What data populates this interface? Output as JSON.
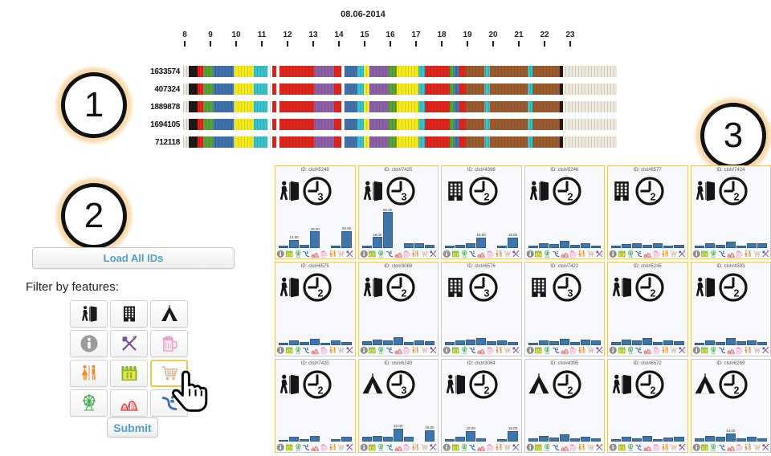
{
  "annotations": {
    "step1": "1",
    "step2": "2",
    "step3": "3"
  },
  "timeline": {
    "title": "08.06-2014",
    "hours": [
      "8",
      "9",
      "10",
      "11",
      "12",
      "13",
      "14",
      "15",
      "16",
      "17",
      "18",
      "19",
      "20",
      "21",
      "22",
      "23"
    ],
    "rows": [
      "1633574",
      "407324",
      "1889878",
      "1694105",
      "712118"
    ],
    "palette": {
      "off": "#edeadf",
      "blk": "#191919",
      "red": "#e3221b",
      "grn": "#54a437",
      "blu": "#3c72b2",
      "yel": "#f6ec16",
      "cyn": "#32c5cd",
      "wht": "#ffffff",
      "pur": "#8b5fa9",
      "brn": "#9c5b2d"
    },
    "segments": [
      [
        "off",
        8
      ],
      [
        "blk",
        12
      ],
      [
        "red",
        8
      ],
      [
        "grn",
        14
      ],
      [
        "blu",
        27
      ],
      [
        "yel",
        28
      ],
      [
        "cyn",
        19
      ],
      [
        "wht",
        6
      ],
      [
        "red",
        6
      ],
      [
        "wht",
        4
      ],
      [
        "red",
        48
      ],
      [
        "pur",
        28
      ],
      [
        "red",
        9
      ],
      [
        "wht",
        5
      ],
      [
        "blu",
        17
      ],
      [
        "cyn",
        9
      ],
      [
        "yel",
        8
      ],
      [
        "pur",
        26
      ],
      [
        "grn",
        11
      ],
      [
        "yel",
        30
      ],
      [
        "cyn",
        9
      ],
      [
        "red",
        34
      ],
      [
        "grn",
        7
      ],
      [
        "blu",
        7
      ],
      [
        "red",
        8
      ],
      [
        "brn",
        26
      ],
      [
        "cyn",
        7
      ],
      [
        "brn",
        52
      ],
      [
        "cyn",
        7
      ],
      [
        "brn",
        38
      ],
      [
        "blk",
        4
      ],
      [
        "off",
        74
      ]
    ]
  },
  "controls": {
    "load_button": "Load All IDs",
    "filter_label": "Filter by features:",
    "submit_button": "Submit",
    "features": [
      {
        "name": "entrance",
        "icon": "door",
        "color": "#1a1a1a",
        "selected": false
      },
      {
        "name": "building",
        "icon": "building",
        "color": "#1a1a1a",
        "selected": false
      },
      {
        "name": "tent",
        "icon": "tent",
        "color": "#1a1a1a",
        "selected": false
      },
      {
        "name": "info",
        "icon": "info",
        "color": "#9b9b9b",
        "selected": false
      },
      {
        "name": "food",
        "icon": "cutlery",
        "color": "#7d4fa0",
        "selected": false
      },
      {
        "name": "beer",
        "icon": "beer",
        "color": "#f2a0c8",
        "selected": false
      },
      {
        "name": "restroom",
        "icon": "restroom",
        "color": "#f08a24",
        "selected": false
      },
      {
        "name": "castle",
        "icon": "castle",
        "color": "#7ab648",
        "selected": false
      },
      {
        "name": "shopping-cart",
        "icon": "cart",
        "color": "#d8b292",
        "selected": true
      },
      {
        "name": "ferris-wheel",
        "icon": "ferris",
        "color": "#3fae49",
        "selected": false
      },
      {
        "name": "roller-coaster",
        "icon": "coaster",
        "color": "#e0524d",
        "selected": false
      },
      {
        "name": "water-slide",
        "icon": "slide",
        "color": "#3e6eb5",
        "selected": false
      }
    ]
  },
  "cards_meta": {
    "bar_color": "#3e76ab",
    "footer_icons": [
      "info",
      "castle",
      "ferris",
      "slide",
      "coaster",
      "beer",
      "restroom",
      "cart",
      "cutlery"
    ],
    "footer_colors": {
      "info": "#8f8f8f",
      "castle": "#7ab648",
      "ferris": "#3fae49",
      "slide": "#3e6eb5",
      "coaster": "#e0524d",
      "beer": "#f2a0c8",
      "restroom": "#f08a24",
      "cart": "#cdb79a",
      "cutlery": "#7d4fa0"
    }
  },
  "cards": [
    {
      "id": "ID: clst#5249",
      "feature": "door",
      "clock": "3",
      "bars": [
        4,
        14,
        6,
        28,
        0,
        4,
        29
      ]
    },
    {
      "id": "ID: clst#7425",
      "feature": "door",
      "clock": "3",
      "bars": [
        5,
        19,
        60,
        0,
        8,
        8,
        6
      ]
    },
    {
      "id": "ID: clst#4398",
      "feature": "building",
      "clock": "2",
      "bars": [
        4,
        6,
        8,
        18,
        0,
        4,
        18
      ]
    },
    {
      "id": "ID: clst#5246",
      "feature": "door",
      "clock": "2",
      "bars": [
        5,
        8,
        7,
        12,
        6,
        9,
        5
      ]
    },
    {
      "id": "ID: clst#6577",
      "feature": "building",
      "clock": "2",
      "bars": [
        4,
        7,
        9,
        6,
        8,
        5,
        6
      ]
    },
    {
      "id": "ID: clst#7424",
      "feature": "door",
      "clock": "2",
      "bars": [
        5,
        8,
        6,
        11,
        5,
        8,
        9
      ]
    },
    {
      "id": "ID: clst#6575",
      "feature": "door",
      "clock": "2",
      "bars": [
        4,
        8,
        5,
        10,
        4,
        7,
        5
      ]
    },
    {
      "id": "ID: clst#3069",
      "feature": "door",
      "clock": "2",
      "bars": [
        6,
        9,
        7,
        13,
        5,
        8,
        6
      ]
    },
    {
      "id": "ID: clst#6576",
      "feature": "building",
      "clock": "3",
      "bars": [
        5,
        7,
        9,
        12,
        6,
        8,
        5
      ]
    },
    {
      "id": "ID: clst#7422",
      "feature": "building",
      "clock": "3",
      "bars": [
        4,
        8,
        6,
        10,
        5,
        9,
        7
      ]
    },
    {
      "id": "ID: clst#5245",
      "feature": "door",
      "clock": "2",
      "bars": [
        5,
        9,
        7,
        12,
        5,
        7,
        6
      ]
    },
    {
      "id": "ID: clst#4393",
      "feature": "door",
      "clock": "2",
      "bars": [
        4,
        7,
        5,
        11,
        6,
        8,
        5
      ]
    },
    {
      "id": "ID: clst#7420",
      "feature": "door",
      "clock": "2",
      "bars": [
        3,
        8,
        4,
        9,
        0,
        4,
        8
      ]
    },
    {
      "id": "ID: clst#6240",
      "feature": "tent",
      "clock": "3",
      "bars": [
        8,
        9,
        8,
        22,
        8,
        0,
        19
      ]
    },
    {
      "id": "ID: clst#3064",
      "feature": "door",
      "clock": "2",
      "bars": [
        4,
        8,
        18,
        6,
        0,
        4,
        18
      ]
    },
    {
      "id": "ID: clst#4395",
      "feature": "tent",
      "clock": "2",
      "bars": [
        5,
        9,
        7,
        12,
        5,
        8,
        6
      ]
    },
    {
      "id": "ID: clst#6572",
      "feature": "door",
      "clock": "2",
      "bars": [
        4,
        8,
        6,
        10,
        4,
        7,
        8
      ]
    },
    {
      "id": "ID: clst#6269",
      "feature": "tent",
      "clock": "2",
      "bars": [
        5,
        10,
        8,
        14,
        6,
        8,
        5
      ]
    }
  ]
}
